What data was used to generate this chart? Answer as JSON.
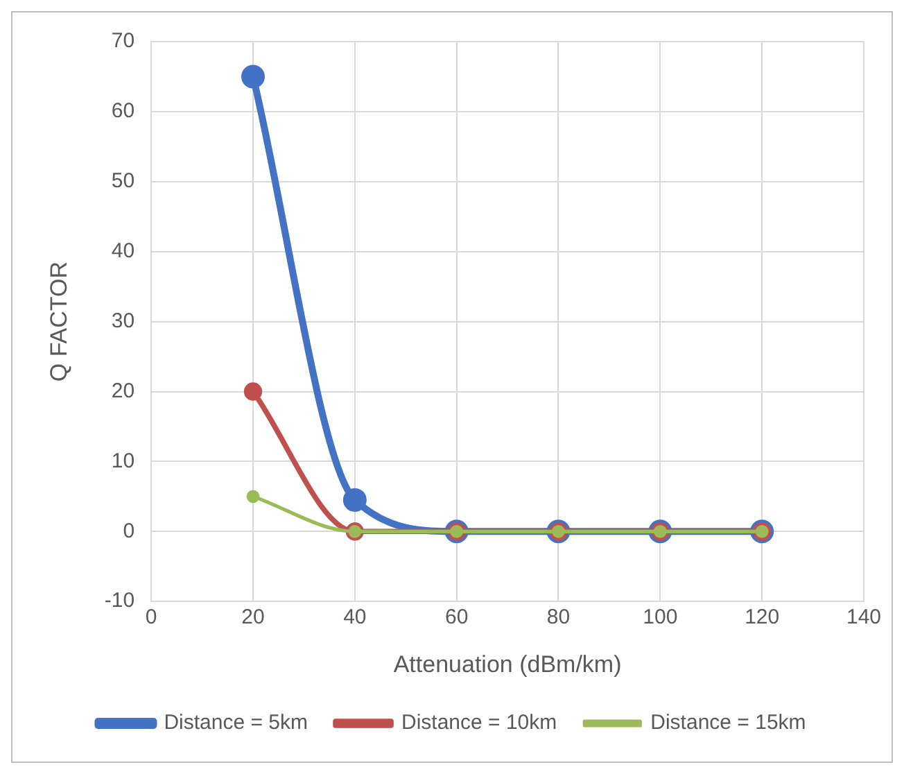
{
  "chart_data": {
    "type": "line",
    "xlabel": "Attenuation (dBm/km)",
    "ylabel": "Q FACTOR",
    "x": [
      20,
      40,
      60,
      80,
      100,
      120
    ],
    "series": [
      {
        "name": "Distance = 5km",
        "color": "#4472c4",
        "values": [
          65,
          4.5,
          0,
          0,
          0,
          0
        ]
      },
      {
        "name": "Distance = 10km",
        "color": "#c0504d",
        "values": [
          20,
          0,
          0,
          0,
          0,
          0
        ]
      },
      {
        "name": "Distance = 15km",
        "color": "#9bbb59",
        "values": [
          5,
          0,
          0,
          0,
          0,
          0
        ]
      }
    ],
    "xlim": [
      0,
      140
    ],
    "xticks": [
      0,
      20,
      40,
      60,
      80,
      100,
      120,
      140
    ],
    "ylim": [
      -10,
      70
    ],
    "yticks": [
      -10,
      0,
      10,
      20,
      30,
      40,
      50,
      60,
      70
    ],
    "grid": true,
    "legend": "bottom",
    "marker": "circle",
    "line_style": "solid"
  }
}
